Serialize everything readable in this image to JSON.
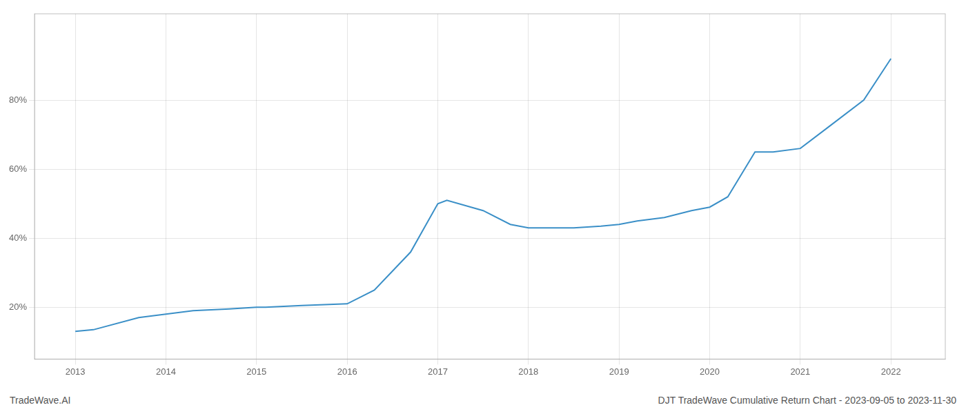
{
  "chart_data": {
    "type": "line",
    "title": "DJT TradeWave Cumulative Return Chart - 2023-09-05 to 2023-11-30",
    "annotations": [
      "TradeWave.AI"
    ],
    "x": [
      2013.0,
      2013.2,
      2013.7,
      2014.0,
      2014.3,
      2014.7,
      2015.0,
      2015.1,
      2015.5,
      2016.0,
      2016.3,
      2016.7,
      2017.0,
      2017.1,
      2017.5,
      2017.8,
      2018.0,
      2018.3,
      2018.5,
      2018.8,
      2019.0,
      2019.2,
      2019.5,
      2019.8,
      2020.0,
      2020.2,
      2020.5,
      2020.7,
      2021.0,
      2021.3,
      2021.7,
      2022.0
    ],
    "values": [
      13,
      13.5,
      17,
      18,
      19,
      19.5,
      20,
      20,
      20.5,
      21,
      25,
      36,
      50,
      51,
      48,
      44,
      43,
      43,
      43,
      43.5,
      44,
      45,
      46,
      48,
      49,
      52,
      65,
      65,
      66,
      72,
      80,
      92
    ],
    "color": "#3a8fc7",
    "xlim": [
      2012.55,
      2022.6
    ],
    "xticks": [
      2013,
      2014,
      2015,
      2016,
      2017,
      2018,
      2019,
      2020,
      2021,
      2022
    ],
    "ylim": [
      5,
      105
    ],
    "yticks": [
      {
        "value": 20,
        "label": "20%"
      },
      {
        "value": 40,
        "label": "40%"
      },
      {
        "value": 60,
        "label": "60%"
      },
      {
        "value": 80,
        "label": "80%"
      }
    ],
    "grid": true
  }
}
